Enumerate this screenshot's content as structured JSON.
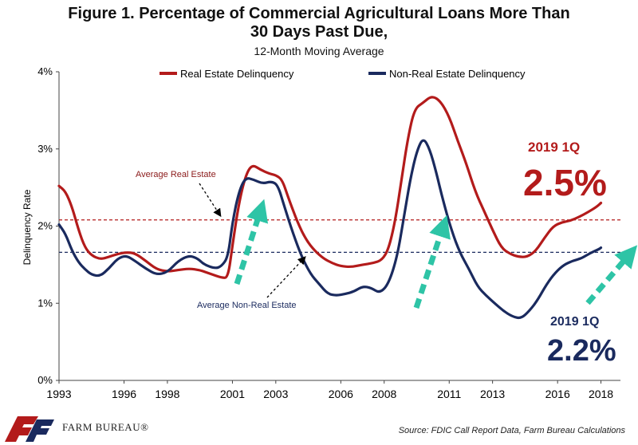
{
  "title_line1": "Figure 1. Percentage of Commercial Agricultural Loans More Than",
  "title_line2": "30 Days Past Due,",
  "subtitle": "12-Month Moving Average",
  "source": "Source: FDIC Call Report Data, Farm Bureau Calculations",
  "logo_text": "FARM BUREAU®",
  "colors": {
    "real_estate": "#b31b1b",
    "non_real_estate": "#1a2a5e",
    "arrow": "#2ec4a6"
  },
  "chart_data": {
    "type": "line",
    "ylabel": "Delinquency Rate",
    "ylim": [
      0,
      4
    ],
    "yticks": [
      "0%",
      "1%",
      "2%",
      "3%",
      "4%"
    ],
    "xlim": [
      1993,
      2018.9
    ],
    "xticks": [
      {
        "label": "1993",
        "x": 1993
      },
      {
        "label": "1996",
        "x": 1996
      },
      {
        "label": "1998",
        "x": 1998
      },
      {
        "label": "2001",
        "x": 2001
      },
      {
        "label": "2003",
        "x": 2003
      },
      {
        "label": "2006",
        "x": 2006
      },
      {
        "label": "2008",
        "x": 2008
      },
      {
        "label": "2011",
        "x": 2011
      },
      {
        "label": "2013",
        "x": 2013
      },
      {
        "label": "2016",
        "x": 2016
      },
      {
        "label": "2018",
        "x": 2018
      }
    ],
    "legend": {
      "placement": "top",
      "entries": [
        "Real Estate Delinquency",
        "Non-Real Estate Delinquency"
      ]
    },
    "series": [
      {
        "name": "Real Estate Delinquency",
        "points": [
          [
            1993.0,
            2.52
          ],
          [
            1993.3,
            2.45
          ],
          [
            1993.6,
            2.25
          ],
          [
            1993.9,
            1.95
          ],
          [
            1994.2,
            1.72
          ],
          [
            1994.5,
            1.62
          ],
          [
            1994.9,
            1.57
          ],
          [
            1995.3,
            1.6
          ],
          [
            1995.7,
            1.64
          ],
          [
            1996.1,
            1.66
          ],
          [
            1996.5,
            1.65
          ],
          [
            1997.0,
            1.55
          ],
          [
            1997.5,
            1.44
          ],
          [
            1998.0,
            1.41
          ],
          [
            1998.5,
            1.43
          ],
          [
            1999.0,
            1.45
          ],
          [
            1999.5,
            1.43
          ],
          [
            2000.0,
            1.38
          ],
          [
            2000.5,
            1.33
          ],
          [
            2000.8,
            1.33
          ],
          [
            2001.0,
            1.75
          ],
          [
            2001.3,
            2.3
          ],
          [
            2001.6,
            2.65
          ],
          [
            2001.9,
            2.8
          ],
          [
            2002.3,
            2.73
          ],
          [
            2002.7,
            2.68
          ],
          [
            2003.0,
            2.66
          ],
          [
            2003.3,
            2.6
          ],
          [
            2003.6,
            2.35
          ],
          [
            2004.0,
            2.05
          ],
          [
            2004.4,
            1.82
          ],
          [
            2004.8,
            1.68
          ],
          [
            2005.2,
            1.58
          ],
          [
            2005.6,
            1.52
          ],
          [
            2006.0,
            1.48
          ],
          [
            2006.5,
            1.47
          ],
          [
            2007.0,
            1.5
          ],
          [
            2007.5,
            1.52
          ],
          [
            2007.9,
            1.56
          ],
          [
            2008.2,
            1.7
          ],
          [
            2008.5,
            2.05
          ],
          [
            2008.8,
            2.6
          ],
          [
            2009.1,
            3.15
          ],
          [
            2009.4,
            3.52
          ],
          [
            2009.8,
            3.6
          ],
          [
            2010.2,
            3.69
          ],
          [
            2010.6,
            3.62
          ],
          [
            2011.0,
            3.42
          ],
          [
            2011.4,
            3.1
          ],
          [
            2011.8,
            2.8
          ],
          [
            2012.2,
            2.45
          ],
          [
            2012.6,
            2.2
          ],
          [
            2013.0,
            1.95
          ],
          [
            2013.4,
            1.72
          ],
          [
            2013.8,
            1.64
          ],
          [
            2014.2,
            1.6
          ],
          [
            2014.6,
            1.6
          ],
          [
            2015.0,
            1.68
          ],
          [
            2015.4,
            1.85
          ],
          [
            2015.8,
            2.0
          ],
          [
            2016.2,
            2.05
          ],
          [
            2016.6,
            2.07
          ],
          [
            2017.0,
            2.12
          ],
          [
            2017.4,
            2.18
          ],
          [
            2017.8,
            2.25
          ],
          [
            2018.0,
            2.3
          ]
        ]
      },
      {
        "name": "Non-Real Estate Delinquency",
        "points": [
          [
            1993.0,
            2.02
          ],
          [
            1993.3,
            1.9
          ],
          [
            1993.6,
            1.68
          ],
          [
            1993.9,
            1.53
          ],
          [
            1994.2,
            1.44
          ],
          [
            1994.5,
            1.37
          ],
          [
            1994.9,
            1.35
          ],
          [
            1995.3,
            1.45
          ],
          [
            1995.7,
            1.58
          ],
          [
            1996.1,
            1.62
          ],
          [
            1996.5,
            1.55
          ],
          [
            1997.0,
            1.45
          ],
          [
            1997.5,
            1.37
          ],
          [
            1998.0,
            1.4
          ],
          [
            1998.5,
            1.55
          ],
          [
            1999.0,
            1.62
          ],
          [
            1999.4,
            1.58
          ],
          [
            1999.7,
            1.5
          ],
          [
            2000.2,
            1.45
          ],
          [
            2000.5,
            1.48
          ],
          [
            2000.8,
            1.6
          ],
          [
            2001.0,
            2.05
          ],
          [
            2001.3,
            2.45
          ],
          [
            2001.6,
            2.63
          ],
          [
            2002.0,
            2.6
          ],
          [
            2002.4,
            2.55
          ],
          [
            2002.8,
            2.58
          ],
          [
            2003.1,
            2.53
          ],
          [
            2003.4,
            2.25
          ],
          [
            2003.8,
            1.9
          ],
          [
            2004.2,
            1.6
          ],
          [
            2004.6,
            1.38
          ],
          [
            2005.0,
            1.25
          ],
          [
            2005.4,
            1.12
          ],
          [
            2005.8,
            1.1
          ],
          [
            2006.2,
            1.12
          ],
          [
            2006.6,
            1.15
          ],
          [
            2007.0,
            1.22
          ],
          [
            2007.4,
            1.2
          ],
          [
            2007.8,
            1.13
          ],
          [
            2008.2,
            1.25
          ],
          [
            2008.6,
            1.6
          ],
          [
            2008.9,
            2.1
          ],
          [
            2009.2,
            2.6
          ],
          [
            2009.5,
            2.97
          ],
          [
            2009.8,
            3.15
          ],
          [
            2010.1,
            3.0
          ],
          [
            2010.4,
            2.7
          ],
          [
            2010.7,
            2.35
          ],
          [
            2011.1,
            1.95
          ],
          [
            2011.5,
            1.65
          ],
          [
            2011.9,
            1.45
          ],
          [
            2012.3,
            1.22
          ],
          [
            2012.7,
            1.1
          ],
          [
            2013.1,
            1.0
          ],
          [
            2013.5,
            0.9
          ],
          [
            2013.9,
            0.83
          ],
          [
            2014.3,
            0.8
          ],
          [
            2014.7,
            0.9
          ],
          [
            2015.1,
            1.05
          ],
          [
            2015.5,
            1.25
          ],
          [
            2015.9,
            1.4
          ],
          [
            2016.3,
            1.5
          ],
          [
            2016.7,
            1.55
          ],
          [
            2017.1,
            1.58
          ],
          [
            2017.5,
            1.65
          ],
          [
            2017.9,
            1.7
          ],
          [
            2018.0,
            1.72
          ]
        ]
      }
    ],
    "reference_lines": [
      {
        "name": "Average Real Estate",
        "y": 2.08
      },
      {
        "name": "Average Non-Real Estate",
        "y": 1.66
      }
    ],
    "annotations": {
      "avg_re_label": "Average Real Estate",
      "avg_nre_label": "Average Non-Real Estate",
      "re_callout_period": "2019 1Q",
      "re_callout_value": "2.5%",
      "nre_callout_period": "2019 1Q",
      "nre_callout_value": "2.2%"
    }
  }
}
